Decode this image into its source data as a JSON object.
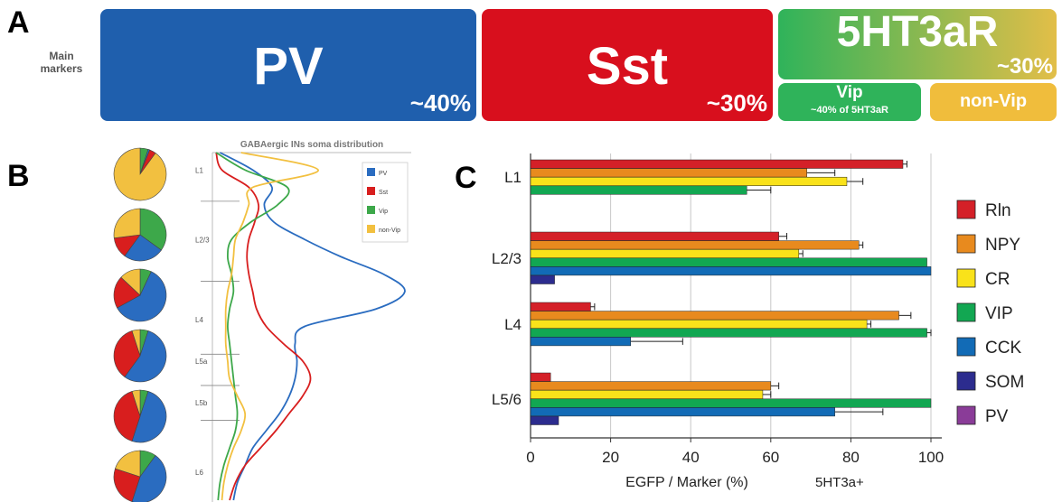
{
  "panel_labels": {
    "a": "A",
    "b": "B",
    "c": "C"
  },
  "panel_a": {
    "side_label": "Main\nmarkers",
    "pv": {
      "label": "PV",
      "pct": "~40%",
      "color": "#1f5fad"
    },
    "sst": {
      "label": "Sst",
      "pct": "~30%",
      "color": "#d80f1d"
    },
    "ht3ar": {
      "label": "5HT3aR",
      "pct": "~30%",
      "color_start": "#2fb35a",
      "color_end": "#e2be48"
    },
    "vip": {
      "label": "Vip",
      "sub": "~40% of 5HT3aR",
      "color": "#2fb35a"
    },
    "nonvip": {
      "label": "non-Vip",
      "color": "#f0bd3c"
    }
  },
  "chart_data": [
    {
      "type": "pie",
      "title": "",
      "layers": [
        "L1",
        "L2/3",
        "L4",
        "L5a",
        "L5b",
        "L6"
      ],
      "colors": {
        "PV": "#2a6cc0",
        "Sst": "#d81e1e",
        "Vip": "#3da84a",
        "non-Vip": "#f2c040"
      },
      "pies": [
        {
          "PV": 1,
          "Sst": 4,
          "Vip": 5,
          "non-Vip": 90
        },
        {
          "PV": 25,
          "Sst": 13,
          "Vip": 35,
          "non-Vip": 27
        },
        {
          "PV": 60,
          "Sst": 20,
          "Vip": 7,
          "non-Vip": 13
        },
        {
          "PV": 55,
          "Sst": 35,
          "Vip": 5,
          "non-Vip": 5
        },
        {
          "PV": 50,
          "Sst": 40,
          "Vip": 5,
          "non-Vip": 5
        },
        {
          "PV": 45,
          "Sst": 25,
          "Vip": 10,
          "non-Vip": 20
        }
      ]
    },
    {
      "type": "line",
      "title": "GABAergic INs soma distribution",
      "layers": [
        "L1",
        "L2/3",
        "L4",
        "L5a",
        "L5b",
        "L6"
      ],
      "legend": [
        "PV",
        "Sst",
        "Vip",
        "non-Vip"
      ],
      "legend_position": "top-right",
      "colors": {
        "PV": "#2a6cc0",
        "Sst": "#d81e1e",
        "Vip": "#3da84a",
        "non-Vip": "#f2c040"
      },
      "depth": [
        0,
        0.05,
        0.1,
        0.15,
        0.2,
        0.25,
        0.3,
        0.35,
        0.4,
        0.45,
        0.5,
        0.55,
        0.6,
        0.65,
        0.7,
        0.75,
        0.8,
        0.85,
        0.9,
        0.95,
        1.0
      ],
      "series": [
        {
          "name": "PV",
          "values": [
            0.03,
            0.2,
            0.3,
            0.26,
            0.31,
            0.47,
            0.66,
            0.88,
            0.99,
            0.84,
            0.47,
            0.42,
            0.43,
            0.42,
            0.39,
            0.34,
            0.27,
            0.2,
            0.16,
            0.12,
            0.1
          ]
        },
        {
          "name": "Sst",
          "values": [
            0.01,
            0.04,
            0.18,
            0.23,
            0.21,
            0.18,
            0.17,
            0.18,
            0.2,
            0.22,
            0.27,
            0.36,
            0.46,
            0.5,
            0.46,
            0.39,
            0.32,
            0.24,
            0.16,
            0.11,
            0.08
          ]
        },
        {
          "name": "Vip",
          "values": [
            0.01,
            0.16,
            0.38,
            0.33,
            0.19,
            0.09,
            0.07,
            0.09,
            0.1,
            0.08,
            0.07,
            0.08,
            0.09,
            0.1,
            0.11,
            0.12,
            0.11,
            0.08,
            0.05,
            0.03,
            0.02
          ]
        },
        {
          "name": "non-Vip",
          "values": [
            0.14,
            0.54,
            0.2,
            0.18,
            0.15,
            0.11,
            0.1,
            0.09,
            0.07,
            0.06,
            0.06,
            0.06,
            0.07,
            0.08,
            0.12,
            0.16,
            0.14,
            0.1,
            0.07,
            0.05,
            0.04
          ]
        }
      ]
    },
    {
      "type": "bar",
      "title": "",
      "xlabel": "EGFP / Marker (%)",
      "xlabel_suffix": "5HT3a+",
      "xlim": [
        0,
        100
      ],
      "xticks": [
        "0",
        "20",
        "40",
        "60",
        "80",
        "100"
      ],
      "categories": [
        "L1",
        "L2/3",
        "L4",
        "L5/6"
      ],
      "legend_position": "right",
      "series": [
        {
          "name": "Rln",
          "color": "#d42028",
          "values": [
            93,
            62,
            15,
            5
          ],
          "errors": [
            1,
            2,
            1,
            0
          ]
        },
        {
          "name": "NPY",
          "color": "#e88a1e",
          "values": [
            69,
            82,
            92,
            60
          ],
          "errors": [
            7,
            1,
            3,
            2
          ]
        },
        {
          "name": "CR",
          "color": "#f9e21a",
          "values": [
            79,
            67,
            84,
            58
          ],
          "errors": [
            4,
            1,
            1,
            2
          ]
        },
        {
          "name": "VIP",
          "color": "#12a752",
          "values": [
            54,
            99,
            99,
            100
          ],
          "errors": [
            6,
            0,
            1,
            0
          ]
        },
        {
          "name": "CCK",
          "color": "#126bb6",
          "values": [
            null,
            100,
            25,
            76
          ],
          "errors": [
            0,
            0,
            13,
            12
          ]
        },
        {
          "name": "SOM",
          "color": "#2c2c8e",
          "values": [
            null,
            6,
            null,
            7
          ],
          "errors": [
            0,
            0,
            0,
            0
          ]
        },
        {
          "name": "PV",
          "color": "#8a3c98",
          "values": [
            null,
            null,
            null,
            null
          ],
          "errors": [
            0,
            0,
            0,
            0
          ]
        }
      ]
    }
  ]
}
